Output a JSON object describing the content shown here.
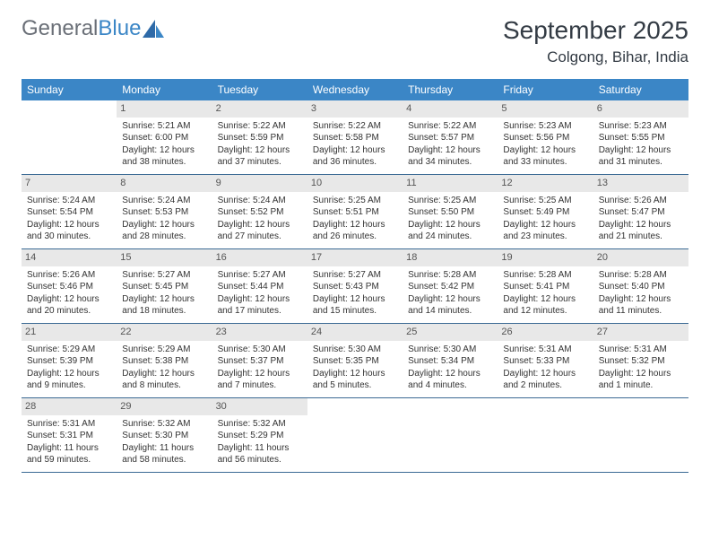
{
  "brand": {
    "part1": "General",
    "part2": "Blue"
  },
  "title": "September 2025",
  "location": "Colgong, Bihar, India",
  "colors": {
    "header_bg": "#3b86c6",
    "header_text": "#ffffff",
    "daynum_bg": "#e8e8e8",
    "week_border": "#3b6a94",
    "text": "#333333",
    "logo_gray": "#6a6f77",
    "logo_blue": "#3b86c6"
  },
  "day_names": [
    "Sunday",
    "Monday",
    "Tuesday",
    "Wednesday",
    "Thursday",
    "Friday",
    "Saturday"
  ],
  "weeks": [
    [
      null,
      {
        "n": "1",
        "sr": "Sunrise: 5:21 AM",
        "ss": "Sunset: 6:00 PM",
        "dl": "Daylight: 12 hours and 38 minutes."
      },
      {
        "n": "2",
        "sr": "Sunrise: 5:22 AM",
        "ss": "Sunset: 5:59 PM",
        "dl": "Daylight: 12 hours and 37 minutes."
      },
      {
        "n": "3",
        "sr": "Sunrise: 5:22 AM",
        "ss": "Sunset: 5:58 PM",
        "dl": "Daylight: 12 hours and 36 minutes."
      },
      {
        "n": "4",
        "sr": "Sunrise: 5:22 AM",
        "ss": "Sunset: 5:57 PM",
        "dl": "Daylight: 12 hours and 34 minutes."
      },
      {
        "n": "5",
        "sr": "Sunrise: 5:23 AM",
        "ss": "Sunset: 5:56 PM",
        "dl": "Daylight: 12 hours and 33 minutes."
      },
      {
        "n": "6",
        "sr": "Sunrise: 5:23 AM",
        "ss": "Sunset: 5:55 PM",
        "dl": "Daylight: 12 hours and 31 minutes."
      }
    ],
    [
      {
        "n": "7",
        "sr": "Sunrise: 5:24 AM",
        "ss": "Sunset: 5:54 PM",
        "dl": "Daylight: 12 hours and 30 minutes."
      },
      {
        "n": "8",
        "sr": "Sunrise: 5:24 AM",
        "ss": "Sunset: 5:53 PM",
        "dl": "Daylight: 12 hours and 28 minutes."
      },
      {
        "n": "9",
        "sr": "Sunrise: 5:24 AM",
        "ss": "Sunset: 5:52 PM",
        "dl": "Daylight: 12 hours and 27 minutes."
      },
      {
        "n": "10",
        "sr": "Sunrise: 5:25 AM",
        "ss": "Sunset: 5:51 PM",
        "dl": "Daylight: 12 hours and 26 minutes."
      },
      {
        "n": "11",
        "sr": "Sunrise: 5:25 AM",
        "ss": "Sunset: 5:50 PM",
        "dl": "Daylight: 12 hours and 24 minutes."
      },
      {
        "n": "12",
        "sr": "Sunrise: 5:25 AM",
        "ss": "Sunset: 5:49 PM",
        "dl": "Daylight: 12 hours and 23 minutes."
      },
      {
        "n": "13",
        "sr": "Sunrise: 5:26 AM",
        "ss": "Sunset: 5:47 PM",
        "dl": "Daylight: 12 hours and 21 minutes."
      }
    ],
    [
      {
        "n": "14",
        "sr": "Sunrise: 5:26 AM",
        "ss": "Sunset: 5:46 PM",
        "dl": "Daylight: 12 hours and 20 minutes."
      },
      {
        "n": "15",
        "sr": "Sunrise: 5:27 AM",
        "ss": "Sunset: 5:45 PM",
        "dl": "Daylight: 12 hours and 18 minutes."
      },
      {
        "n": "16",
        "sr": "Sunrise: 5:27 AM",
        "ss": "Sunset: 5:44 PM",
        "dl": "Daylight: 12 hours and 17 minutes."
      },
      {
        "n": "17",
        "sr": "Sunrise: 5:27 AM",
        "ss": "Sunset: 5:43 PM",
        "dl": "Daylight: 12 hours and 15 minutes."
      },
      {
        "n": "18",
        "sr": "Sunrise: 5:28 AM",
        "ss": "Sunset: 5:42 PM",
        "dl": "Daylight: 12 hours and 14 minutes."
      },
      {
        "n": "19",
        "sr": "Sunrise: 5:28 AM",
        "ss": "Sunset: 5:41 PM",
        "dl": "Daylight: 12 hours and 12 minutes."
      },
      {
        "n": "20",
        "sr": "Sunrise: 5:28 AM",
        "ss": "Sunset: 5:40 PM",
        "dl": "Daylight: 12 hours and 11 minutes."
      }
    ],
    [
      {
        "n": "21",
        "sr": "Sunrise: 5:29 AM",
        "ss": "Sunset: 5:39 PM",
        "dl": "Daylight: 12 hours and 9 minutes."
      },
      {
        "n": "22",
        "sr": "Sunrise: 5:29 AM",
        "ss": "Sunset: 5:38 PM",
        "dl": "Daylight: 12 hours and 8 minutes."
      },
      {
        "n": "23",
        "sr": "Sunrise: 5:30 AM",
        "ss": "Sunset: 5:37 PM",
        "dl": "Daylight: 12 hours and 7 minutes."
      },
      {
        "n": "24",
        "sr": "Sunrise: 5:30 AM",
        "ss": "Sunset: 5:35 PM",
        "dl": "Daylight: 12 hours and 5 minutes."
      },
      {
        "n": "25",
        "sr": "Sunrise: 5:30 AM",
        "ss": "Sunset: 5:34 PM",
        "dl": "Daylight: 12 hours and 4 minutes."
      },
      {
        "n": "26",
        "sr": "Sunrise: 5:31 AM",
        "ss": "Sunset: 5:33 PM",
        "dl": "Daylight: 12 hours and 2 minutes."
      },
      {
        "n": "27",
        "sr": "Sunrise: 5:31 AM",
        "ss": "Sunset: 5:32 PM",
        "dl": "Daylight: 12 hours and 1 minute."
      }
    ],
    [
      {
        "n": "28",
        "sr": "Sunrise: 5:31 AM",
        "ss": "Sunset: 5:31 PM",
        "dl": "Daylight: 11 hours and 59 minutes."
      },
      {
        "n": "29",
        "sr": "Sunrise: 5:32 AM",
        "ss": "Sunset: 5:30 PM",
        "dl": "Daylight: 11 hours and 58 minutes."
      },
      {
        "n": "30",
        "sr": "Sunrise: 5:32 AM",
        "ss": "Sunset: 5:29 PM",
        "dl": "Daylight: 11 hours and 56 minutes."
      },
      null,
      null,
      null,
      null
    ]
  ]
}
